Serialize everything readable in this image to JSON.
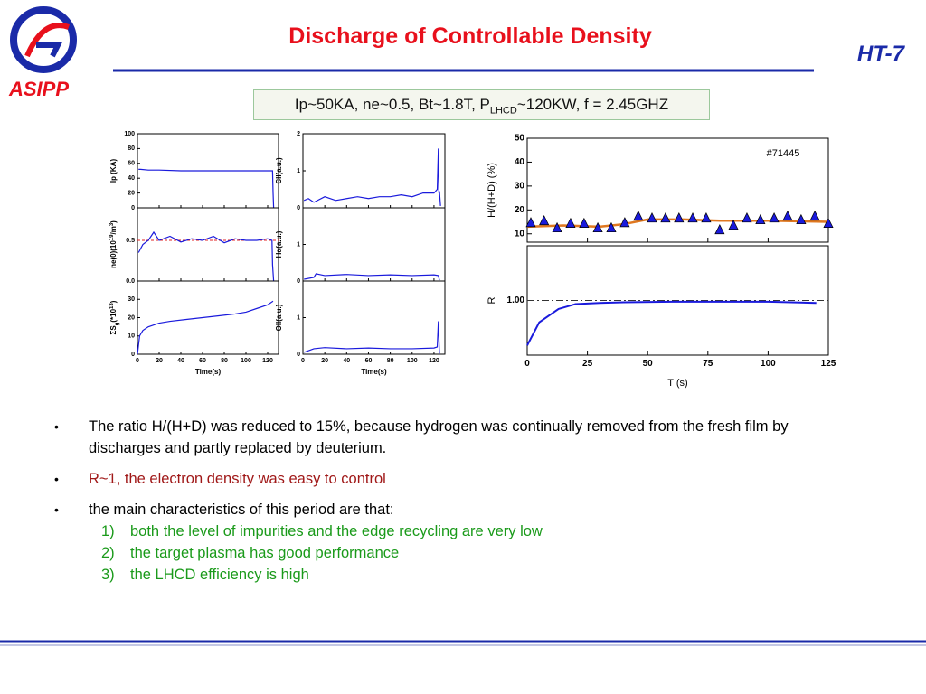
{
  "header": {
    "title": "Discharge of Controllable Density",
    "logo_text": "ASIPP",
    "badge": "HT-7"
  },
  "parameters": {
    "before": "Ip~50KA, ne~0.5, Bt~1.8T, P",
    "subscript": "LHCD",
    "after": "~120KW, f = 2.45GHZ"
  },
  "charts": [
    {
      "type": "line",
      "ylabel": "Ip (KA)",
      "xlim": [
        0,
        130
      ],
      "ylim": [
        0,
        100
      ],
      "xticks": [
        0,
        20,
        40,
        60,
        80,
        100,
        120
      ],
      "yticks": [
        0,
        20,
        40,
        60,
        80,
        100
      ],
      "show_xtick_labels": false,
      "color": "#1a1adc",
      "x": [
        1,
        3,
        10,
        20,
        40,
        60,
        80,
        100,
        120,
        124.5,
        125,
        125.5
      ],
      "values": [
        52,
        52,
        51,
        51,
        50,
        50,
        50,
        50,
        50,
        50,
        20,
        0
      ]
    },
    {
      "type": "line",
      "ylabel": "CII(a.u.)",
      "xlim": [
        0,
        130
      ],
      "ylim": [
        0,
        2
      ],
      "xticks": [
        0,
        20,
        40,
        60,
        80,
        100,
        120
      ],
      "yticks": [
        0,
        1,
        2
      ],
      "show_xtick_labels": false,
      "color": "#1a1adc",
      "x": [
        1,
        5,
        10,
        20,
        30,
        40,
        50,
        60,
        70,
        80,
        90,
        100,
        110,
        120,
        123,
        124,
        124.5,
        125,
        126
      ],
      "values": [
        0.2,
        0.25,
        0.15,
        0.3,
        0.2,
        0.25,
        0.3,
        0.25,
        0.3,
        0.3,
        0.35,
        0.3,
        0.4,
        0.4,
        0.5,
        1.6,
        0.4,
        0.45,
        0.05
      ]
    },
    {
      "type": "line",
      "ylabel": [
        {
          "text": "ne(0)(10"
        },
        {
          "text": "19",
          "shift": "sup"
        },
        {
          "text": "/m"
        },
        {
          "text": "3",
          "shift": "sup"
        },
        {
          "text": ")"
        }
      ],
      "xlim": [
        0,
        130
      ],
      "ylim": [
        0,
        0.9
      ],
      "xticks": [
        0,
        20,
        40,
        60,
        80,
        100,
        120
      ],
      "yticks": [
        {
          "value": 0,
          "label": "0.0"
        },
        0.5
      ],
      "show_xtick_labels": false,
      "color": "#1a1adc",
      "reference": 0.5,
      "reference_color": "#e02020",
      "x": [
        1,
        5,
        10,
        15,
        20,
        30,
        40,
        50,
        60,
        70,
        80,
        90,
        100,
        110,
        120,
        124,
        124.5,
        125.5
      ],
      "values": [
        0.35,
        0.45,
        0.5,
        0.6,
        0.5,
        0.55,
        0.48,
        0.52,
        0.5,
        0.55,
        0.47,
        0.52,
        0.5,
        0.5,
        0.52,
        0.5,
        0.2,
        0
      ]
    },
    {
      "type": "line",
      "ylabel": "Hα(a.u.)",
      "xlim": [
        0,
        130
      ],
      "ylim": [
        0,
        2
      ],
      "xticks": [
        0,
        20,
        40,
        60,
        80,
        100,
        120
      ],
      "yticks": [
        0,
        1
      ],
      "show_xtick_labels": false,
      "color": "#1a1adc",
      "x": [
        1,
        10,
        12,
        20,
        40,
        60,
        80,
        100,
        120,
        124,
        125
      ],
      "values": [
        0.05,
        0.1,
        0.2,
        0.15,
        0.18,
        0.15,
        0.17,
        0.15,
        0.17,
        0.15,
        0.02
      ]
    },
    {
      "type": "line",
      "ylabel": [
        {
          "text": "ΣS"
        },
        {
          "text": "g",
          "shift": "sub"
        },
        {
          "text": "(*10"
        },
        {
          "text": "13",
          "shift": "sup"
        },
        {
          "text": ")"
        }
      ],
      "xlabel": "Time(s)",
      "xlim": [
        0,
        130
      ],
      "ylim": [
        0,
        40
      ],
      "xticks": [
        0,
        20,
        40,
        60,
        80,
        100,
        120
      ],
      "yticks": [
        0,
        10,
        20,
        30
      ],
      "show_xtick_labels": true,
      "color": "#1a1adc",
      "x": [
        0,
        2,
        5,
        10,
        20,
        30,
        45,
        60,
        75,
        90,
        100,
        110,
        120,
        125
      ],
      "values": [
        0,
        10,
        13,
        15,
        17,
        18,
        19,
        20,
        21,
        22,
        23,
        25,
        27,
        29
      ]
    },
    {
      "type": "line",
      "ylabel": "OII(a.u.)",
      "xlabel": "Time(s)",
      "xlim": [
        0,
        130
      ],
      "ylim": [
        0,
        2
      ],
      "xticks": [
        0,
        20,
        40,
        60,
        80,
        100,
        120
      ],
      "yticks": [
        0,
        1
      ],
      "show_xtick_labels": true,
      "color": "#1a1adc",
      "x": [
        1,
        10,
        20,
        40,
        60,
        80,
        100,
        120,
        123,
        124,
        125
      ],
      "values": [
        0.05,
        0.15,
        0.18,
        0.15,
        0.17,
        0.15,
        0.15,
        0.17,
        0.2,
        0.9,
        0.02
      ]
    },
    {
      "type": "scatter",
      "ylabel": "H/(H+D) (%)",
      "annotation": "#71445",
      "xlim": [
        0,
        125
      ],
      "ylim": [
        6.5,
        50
      ],
      "xticks": [
        0,
        25,
        50,
        75,
        100,
        125
      ],
      "yticks": [
        10,
        20,
        30,
        40,
        50
      ],
      "show_xtick_labels": false,
      "color": "#1a1adc",
      "x": [
        1.5,
        7,
        12.4,
        18,
        23.6,
        29.3,
        34.9,
        40.5,
        46.1,
        51.8,
        57.4,
        63,
        68.7,
        74.3,
        79.9,
        85.6,
        91.2,
        96.8,
        102.5,
        108.1,
        113.7,
        119.4,
        125
      ],
      "values": [
        14.5,
        15.3,
        12.3,
        14.2,
        14.2,
        12.3,
        12.3,
        14.5,
        17.2,
        16.4,
        16.4,
        16.4,
        16.4,
        16.4,
        11.5,
        13.4,
        16.4,
        15.7,
        16.4,
        17.2,
        15.7,
        17.2,
        14.2
      ],
      "fit": {
        "color": "#e07820",
        "x": [
          0,
          15,
          30,
          40,
          50,
          65,
          80,
          100,
          125
        ],
        "values": [
          13,
          13.5,
          13,
          14,
          16,
          16,
          15.5,
          15.5,
          15
        ]
      }
    },
    {
      "type": "line",
      "ylabel": "R",
      "xlabel": "T (s)",
      "xlim": [
        0,
        125
      ],
      "ylim": [
        0.55,
        1.45
      ],
      "xticks": [
        0,
        25,
        50,
        75,
        100,
        125
      ],
      "yticks": [
        {
          "value": 1,
          "label": "1.00"
        }
      ],
      "show_xtick_labels": true,
      "color": "#1a1adc",
      "reference": 1,
      "reference_color": "#333333",
      "x": [
        0,
        5,
        13,
        20,
        30,
        40,
        60,
        80,
        100,
        120
      ],
      "values": [
        0.63,
        0.82,
        0.93,
        0.97,
        0.98,
        0.985,
        0.99,
        0.99,
        0.99,
        0.98
      ]
    }
  ],
  "bullets": [
    {
      "text": "The ratio H/(H+D) was reduced to 15%, because hydrogen was continually removed from the fresh film by discharges and partly replaced by deuterium.",
      "color": "#000000"
    },
    {
      "text": "R~1, the electron density was easy to control",
      "color": "#a01818"
    },
    {
      "text": "the main characteristics of this period are that:",
      "color": "#000000",
      "items": [
        {
          "number": "1)",
          "text": "both the level of impurities and the edge recycling are very low"
        },
        {
          "number": "2)",
          "text": "the target plasma has good performance"
        },
        {
          "number": "3)",
          "text": "the LHCD efficiency is high"
        }
      ],
      "items_color": "#1a9a1a"
    }
  ]
}
